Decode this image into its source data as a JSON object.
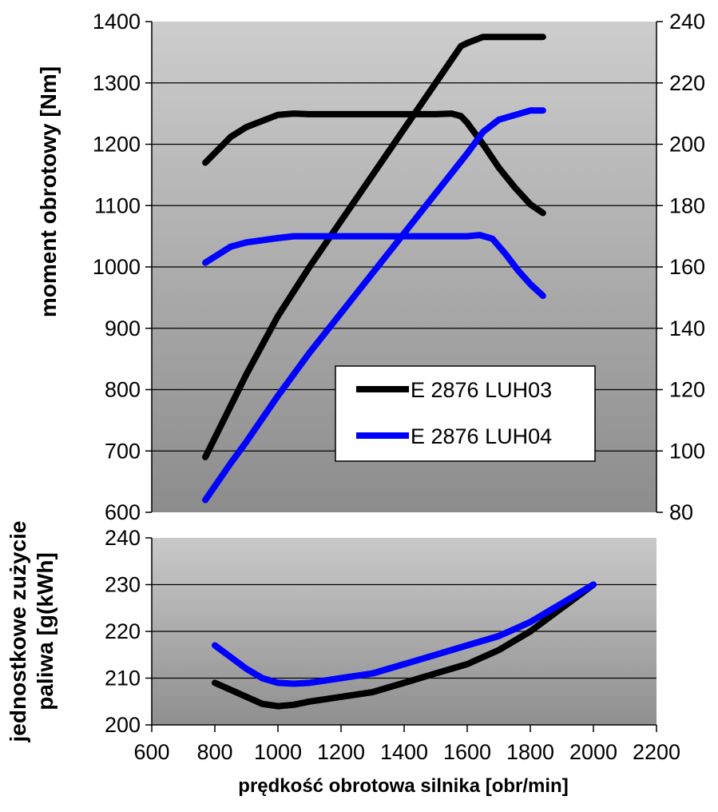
{
  "chart_data": [
    {
      "type": "line",
      "name": "top",
      "ylabel": "moment obrotowy [Nm]",
      "ylim": [
        600,
        1400
      ],
      "y_ticks": [
        "600",
        "700",
        "800",
        "900",
        "1000",
        "1100",
        "1200",
        "1300",
        "1400"
      ],
      "y2lim": [
        80,
        240
      ],
      "y2_ticks": [
        "80",
        "100",
        "120",
        "140",
        "160",
        "180",
        "200",
        "220",
        "240"
      ],
      "xlim": [
        600,
        2200
      ],
      "grid": true,
      "legend_position": "bottom-right",
      "series": [
        {
          "name": "E 2876 LUH03",
          "axis": "left",
          "quantity": "torque",
          "color": "#000000",
          "x": [
            770,
            850,
            900,
            1000,
            1050,
            1100,
            1200,
            1300,
            1400,
            1500,
            1550,
            1580,
            1600,
            1650,
            1700,
            1750,
            1800,
            1840
          ],
          "y": [
            1170,
            1212,
            1228,
            1248,
            1250,
            1249,
            1249,
            1249,
            1249,
            1249,
            1250,
            1246,
            1235,
            1200,
            1162,
            1130,
            1102,
            1088
          ]
        },
        {
          "name": "E 2876 LUH03",
          "axis": "right",
          "quantity": "power",
          "color": "#000000",
          "x": [
            770,
            900,
            1000,
            1100,
            1200,
            1300,
            1400,
            1500,
            1580,
            1600,
            1650,
            1700,
            1800,
            1840
          ],
          "y": [
            98,
            125,
            144,
            160,
            175,
            190,
            205,
            220,
            232,
            233,
            235,
            235,
            235,
            235
          ]
        },
        {
          "name": "E 2876 LUH04",
          "axis": "left",
          "quantity": "torque",
          "color": "#0000ff",
          "x": [
            770,
            850,
            900,
            1000,
            1050,
            1100,
            1200,
            1300,
            1400,
            1500,
            1600,
            1640,
            1680,
            1720,
            1760,
            1800,
            1840
          ],
          "y": [
            1007,
            1033,
            1040,
            1047,
            1050,
            1050,
            1050,
            1050,
            1050,
            1050,
            1050,
            1052,
            1046,
            1022,
            995,
            972,
            953
          ]
        },
        {
          "name": "E 2876 LUH04",
          "axis": "right",
          "quantity": "power",
          "color": "#0000ff",
          "x": [
            770,
            850,
            900,
            1000,
            1100,
            1200,
            1300,
            1400,
            1500,
            1600,
            1650,
            1700,
            1800,
            1840
          ],
          "y": [
            84,
            96,
            103,
            118,
            132,
            145,
            158,
            171,
            184,
            197,
            204,
            208,
            211,
            211
          ]
        }
      ]
    },
    {
      "type": "line",
      "name": "bottom",
      "ylabel": "jednostkowe zużycie paliwa [g(kWh]",
      "ylabel_lines": [
        "jednostkowe zużycie",
        "paliwa [g(kWh]"
      ],
      "xlabel": "prędkość obrotowa silnika [obr/min]",
      "ylim": [
        200,
        240
      ],
      "y_ticks": [
        "200",
        "210",
        "220",
        "230",
        "240"
      ],
      "xlim": [
        600,
        2200
      ],
      "x_ticks": [
        "600",
        "800",
        "1000",
        "1200",
        "1400",
        "1600",
        "1800",
        "2000",
        "2200"
      ],
      "grid": true,
      "series": [
        {
          "name": "E 2876 LUH03",
          "color": "#000000",
          "x": [
            800,
            850,
            900,
            950,
            1000,
            1050,
            1100,
            1200,
            1300,
            1400,
            1500,
            1600,
            1700,
            1800,
            1900,
            2000
          ],
          "y": [
            209,
            207.5,
            206,
            204.5,
            204,
            204.3,
            205,
            206,
            207,
            209,
            211,
            213,
            216,
            220,
            225,
            230
          ]
        },
        {
          "name": "E 2876 LUH04",
          "color": "#0000ff",
          "x": [
            800,
            850,
            900,
            950,
            1000,
            1050,
            1100,
            1200,
            1300,
            1400,
            1500,
            1600,
            1700,
            1800,
            1900,
            2000
          ],
          "y": [
            217,
            214.5,
            212,
            210,
            209,
            208.8,
            209,
            210,
            211,
            213,
            215,
            217,
            219,
            222,
            226,
            230
          ]
        }
      ]
    }
  ]
}
